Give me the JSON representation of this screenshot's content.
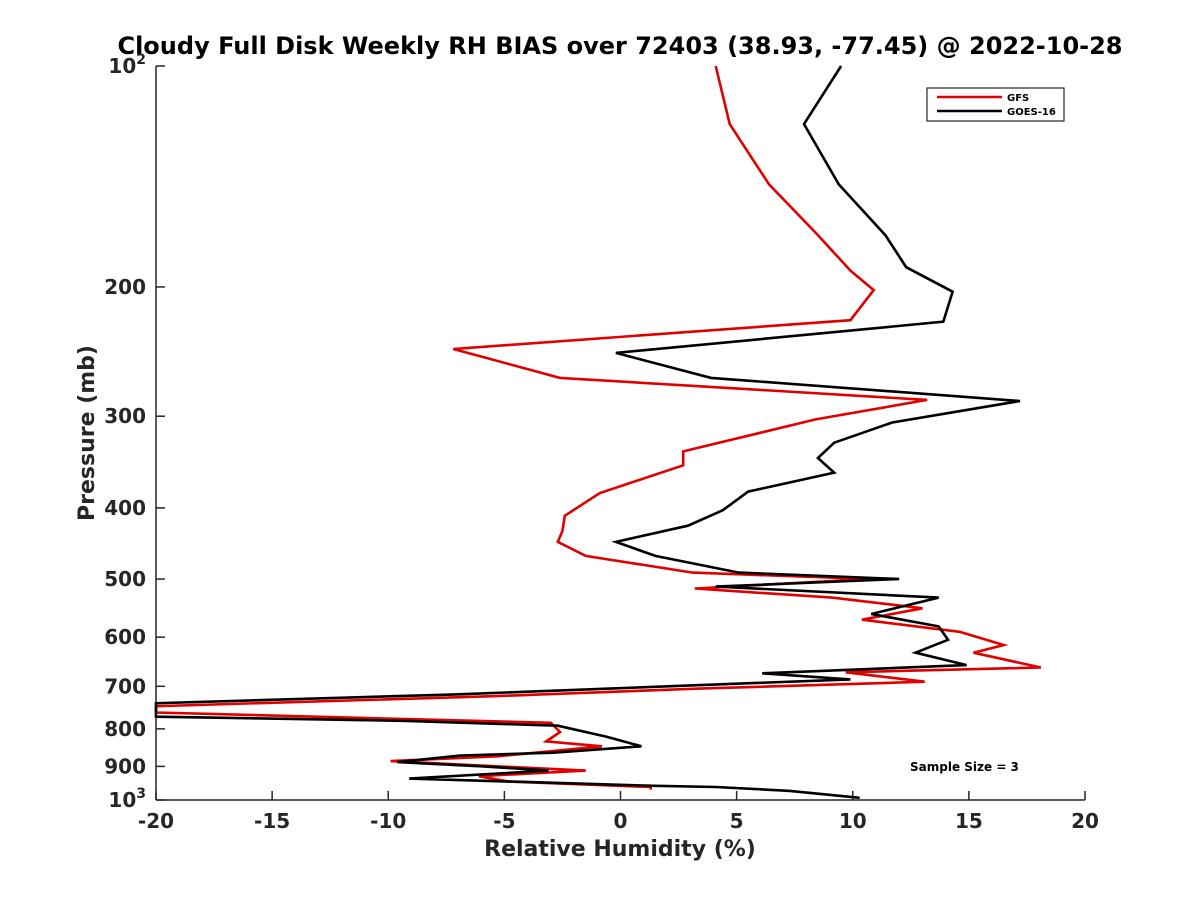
{
  "chart_data": {
    "type": "line",
    "title": "Cloudy Full Disk Weekly RH BIAS over 72403 (38.93, -77.45) @ 2022-10-28",
    "xlabel": "Relative Humidity (%)",
    "ylabel": "Pressure (mb)",
    "xlim": [
      -20,
      20
    ],
    "ylim": [
      100,
      1000
    ],
    "yscale": "log",
    "y_reversed": true,
    "grid": false,
    "legend_position": "top-right",
    "x_ticks": [
      {
        "value": -20,
        "label": "-20"
      },
      {
        "value": -15,
        "label": "-15"
      },
      {
        "value": -10,
        "label": "-10"
      },
      {
        "value": -5,
        "label": "-5"
      },
      {
        "value": 0,
        "label": "0"
      },
      {
        "value": 5,
        "label": "5"
      },
      {
        "value": 10,
        "label": "10"
      },
      {
        "value": 15,
        "label": "15"
      },
      {
        "value": 20,
        "label": "20"
      }
    ],
    "y_ticks": [
      {
        "value": 100,
        "base": "10",
        "exp": "2"
      },
      {
        "value": 200,
        "label": "200"
      },
      {
        "value": 300,
        "label": "300"
      },
      {
        "value": 400,
        "label": "400"
      },
      {
        "value": 500,
        "label": "500"
      },
      {
        "value": 600,
        "label": "600"
      },
      {
        "value": 700,
        "label": "700"
      },
      {
        "value": 800,
        "label": "800"
      },
      {
        "value": 900,
        "label": "900"
      },
      {
        "value": 1000,
        "base": "10",
        "exp": "3"
      }
    ],
    "series": [
      {
        "name": "GFS",
        "color": "#e00000",
        "points": [
          [
            4.1,
            100
          ],
          [
            4.7,
            120
          ],
          [
            6.4,
            145
          ],
          [
            8.5,
            170
          ],
          [
            9.9,
            190
          ],
          [
            10.9,
            202
          ],
          [
            9.9,
            222
          ],
          [
            -7.2,
            243
          ],
          [
            -2.6,
            266
          ],
          [
            13.2,
            285
          ],
          [
            8.4,
            303
          ],
          [
            2.7,
            335
          ],
          [
            2.7,
            350
          ],
          [
            -0.9,
            382
          ],
          [
            -2.4,
            410
          ],
          [
            -2.5,
            430
          ],
          [
            -2.7,
            445
          ],
          [
            -1.5,
            465
          ],
          [
            3.1,
            490
          ],
          [
            10.7,
            500
          ],
          [
            3.2,
            515
          ],
          [
            9.1,
            530
          ],
          [
            13.0,
            548
          ],
          [
            10.4,
            568
          ],
          [
            14.6,
            590
          ],
          [
            16.5,
            615
          ],
          [
            15.2,
            630
          ],
          [
            18.1,
            660
          ],
          [
            9.7,
            670
          ],
          [
            13.1,
            690
          ],
          [
            3.4,
            705
          ],
          [
            -5.5,
            722
          ],
          [
            -20.0,
            745
          ],
          [
            -20.0,
            760
          ],
          [
            -11.1,
            773
          ],
          [
            -3.0,
            785
          ],
          [
            -2.6,
            808
          ],
          [
            -3.2,
            832
          ],
          [
            -0.8,
            845
          ],
          [
            -5.3,
            872
          ],
          [
            -9.9,
            885
          ],
          [
            -1.5,
            912
          ],
          [
            -6.1,
            928
          ],
          [
            -4.8,
            944
          ],
          [
            1.3,
            960
          ],
          [
            1.3,
            968
          ]
        ]
      },
      {
        "name": "GOES-16",
        "color": "#000000",
        "points": [
          [
            9.5,
            100
          ],
          [
            7.9,
            120
          ],
          [
            9.4,
            145
          ],
          [
            11.4,
            170
          ],
          [
            12.3,
            188
          ],
          [
            14.3,
            203
          ],
          [
            13.9,
            223
          ],
          [
            -0.2,
            246
          ],
          [
            3.9,
            266
          ],
          [
            17.2,
            286
          ],
          [
            11.7,
            306
          ],
          [
            9.2,
            326
          ],
          [
            8.5,
            342
          ],
          [
            9.2,
            358
          ],
          [
            5.5,
            380
          ],
          [
            4.4,
            403
          ],
          [
            2.9,
            423
          ],
          [
            -0.2,
            445
          ],
          [
            1.5,
            465
          ],
          [
            5.1,
            490
          ],
          [
            12.0,
            500
          ],
          [
            4.1,
            512
          ],
          [
            13.7,
            530
          ],
          [
            10.8,
            558
          ],
          [
            13.7,
            580
          ],
          [
            14.1,
            605
          ],
          [
            12.7,
            630
          ],
          [
            14.9,
            655
          ],
          [
            6.1,
            672
          ],
          [
            9.9,
            685
          ],
          [
            -7.1,
            718
          ],
          [
            -20.0,
            738
          ],
          [
            -20.0,
            770
          ],
          [
            -9.4,
            780
          ],
          [
            -2.7,
            792
          ],
          [
            -0.6,
            820
          ],
          [
            0.9,
            845
          ],
          [
            -2.9,
            862
          ],
          [
            -6.9,
            870
          ],
          [
            -9.6,
            888
          ],
          [
            -5.9,
            900
          ],
          [
            -3.1,
            912
          ],
          [
            -9.1,
            935
          ],
          [
            -3.2,
            947
          ],
          [
            1.2,
            956
          ],
          [
            4.1,
            960
          ],
          [
            7.3,
            972
          ],
          [
            10.3,
            993
          ]
        ]
      }
    ],
    "annotations": [
      "Sample Size = 3"
    ]
  }
}
